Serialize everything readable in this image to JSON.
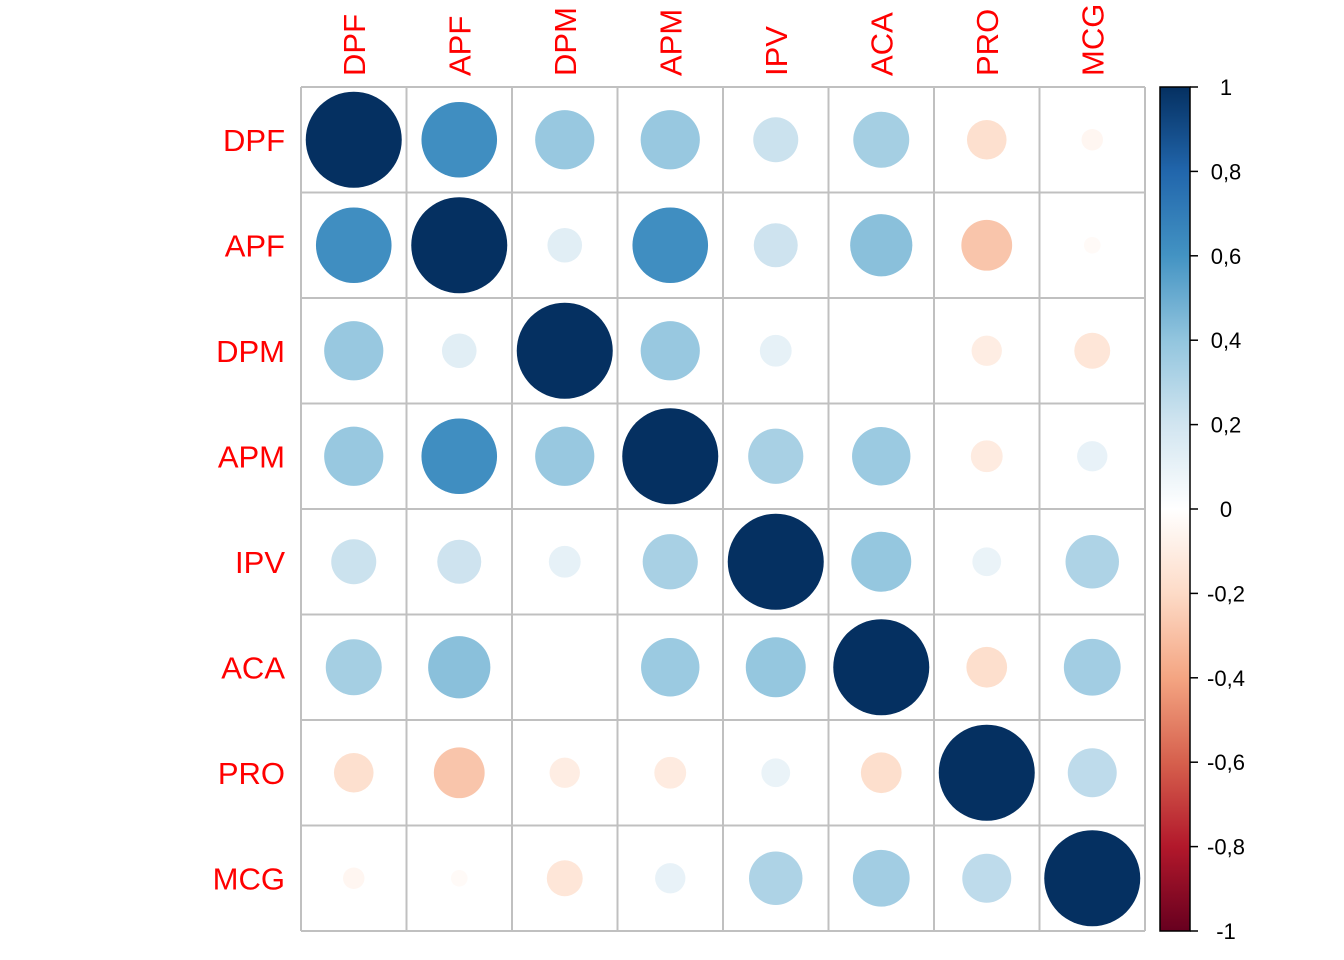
{
  "chart_data": {
    "type": "heatmap",
    "style": "correlation-circles",
    "variables": [
      "DPF",
      "APF",
      "DPM",
      "APM",
      "IPV",
      "ACA",
      "PRO",
      "MCG"
    ],
    "matrix": [
      [
        1.0,
        0.62,
        0.38,
        0.38,
        0.22,
        0.34,
        -0.17,
        -0.05
      ],
      [
        0.62,
        1.0,
        0.13,
        0.62,
        0.21,
        0.42,
        -0.28,
        -0.03
      ],
      [
        0.38,
        0.13,
        1.0,
        0.38,
        0.11,
        0.0,
        -0.1,
        -0.14
      ],
      [
        0.38,
        0.62,
        0.38,
        1.0,
        0.33,
        0.37,
        -0.11,
        0.1
      ],
      [
        0.22,
        0.21,
        0.11,
        0.33,
        1.0,
        0.39,
        0.09,
        0.31
      ],
      [
        0.34,
        0.42,
        0.0,
        0.37,
        0.39,
        1.0,
        -0.18,
        0.35
      ],
      [
        -0.17,
        -0.28,
        -0.1,
        -0.11,
        0.09,
        -0.18,
        1.0,
        0.26
      ],
      [
        -0.05,
        -0.03,
        -0.14,
        0.1,
        0.31,
        0.35,
        0.26,
        1.0
      ]
    ],
    "colorbar": {
      "range": [
        -1,
        1
      ],
      "ticks": [
        "1",
        "0,8",
        "0,6",
        "0,4",
        "0,2",
        "0",
        "-0,2",
        "-0,4",
        "-0,6",
        "-0,8",
        "-1"
      ],
      "placement": "right"
    },
    "label_color": "#ff0000",
    "palette": [
      "#67001F",
      "#B2182B",
      "#D6604D",
      "#F4A582",
      "#FDDBC7",
      "#FFFFFF",
      "#D1E5F0",
      "#92C5DE",
      "#4393C3",
      "#2166AC",
      "#053061"
    ],
    "grid": true
  }
}
